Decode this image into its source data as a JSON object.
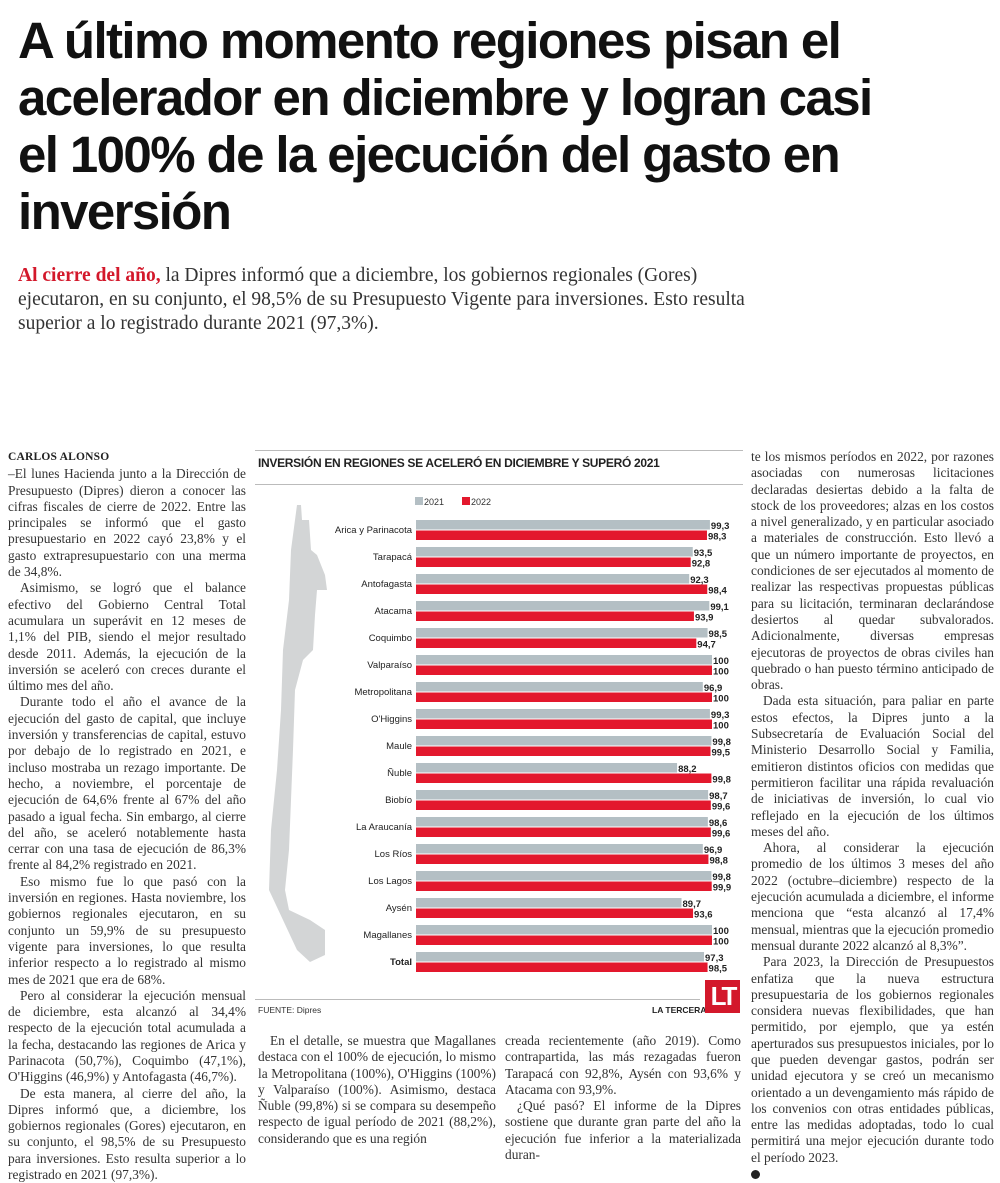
{
  "headline": "A último momento regiones pisan el acelerador en diciembre y logran casi el 100% de la ejecución del gasto en inversión",
  "lead": {
    "highlight": "Al cierre del año,",
    "text": " la Dipres informó que a diciembre, los gobiernos regionales (Gores) ejecutaron, en su conjunto, el 98,5% de su Presupuesto Vigente para inversiones. Esto resulta superior a lo registrado durante 2021 (97,3%)."
  },
  "byline": "CARLOS ALONSO",
  "col1": [
    "–El lunes Hacienda junto a la Dirección de Presupuesto (Dipres) dieron a conocer las cifras fiscales de cierre de 2022. Entre las principales se informó que el gasto presupuestario en 2022 cayó 23,8% y el gasto extrapresupuestario con una merma de 34,8%.",
    "Asimismo, se logró que el balance efectivo del Gobierno Central Total acumulara un superávit en 12 meses de 1,1% del PIB, siendo el mejor resultado desde 2011. Además, la ejecución de la inversión se aceleró con creces durante el último mes del año.",
    "Durante todo el año el avance de la ejecución del gasto de capital, que incluye inversión y transferencias de capital, estuvo por debajo de lo registrado en 2021, e incluso mostraba un rezago importante. De hecho, a noviembre, el porcentaje de ejecución de 64,6% frente al 67% del año pasado a igual fecha. Sin embargo, al cierre del año, se aceleró notablemente hasta cerrar con una tasa de ejecución de 86,3% frente al 84,2% registrado en 2021.",
    "Eso mismo fue lo que pasó con la inversión en regiones. Hasta noviembre, los gobiernos regionales ejecutaron, en su conjunto un 59,9% de su presupuesto vigente para inversiones, lo que resulta inferior respecto a lo registrado al mismo mes de 2021 que era de 68%.",
    "Pero al considerar la ejecución mensual de diciembre, esta alcanzó al 34,4% respecto de la ejecución total acumulada a la fecha, destacando las regiones de Arica y Parinacota (50,7%), Coquimbo (47,1%), O'Higgins (46,9%) y Antofagasta (46,7%).",
    "De esta manera, al cierre del año, la Dipres informó que, a diciembre, los gobiernos regionales (Gores) ejecutaron, en su conjunto, el 98,5% de su Presupuesto para inversiones. Esto resulta superior a lo registrado en 2021 (97,3%)."
  ],
  "col2": [
    "En el detalle, se muestra que Magallanes destaca con el 100% de ejecución, lo mismo la Metropolitana (100%), O'Higgins (100%) y Valparaíso (100%). Asimismo, destaca Ñuble (99,8%) si se compara su desempeño respecto de igual período de 2021 (88,2%), considerando que es una región"
  ],
  "col3": [
    "creada recientemente (año 2019). Como contrapartida, las más rezagadas fueron Tarapacá con 92,8%, Aysén con 93,6% y Atacama con 93,9%.",
    "¿Qué pasó? El informe de la Dipres sostiene que durante gran parte del año la ejecución fue inferior a la materializada duran-"
  ],
  "col4": [
    "te los mismos períodos en 2022, por razones asociadas con numerosas licitaciones declaradas desiertas debido a la falta de stock de los proveedores; alzas en los costos a nivel generalizado, y en particular asociado a materiales de construcción. Esto llevó a que un número importante de proyectos, en condiciones de ser ejecutados al momento de realizar las respectivas propuestas públicas para su licitación, terminaran declarándose desiertos al quedar subvalorados. Adicionalmente, diversas empresas ejecutoras de proyectos de obras civiles han quebrado o han puesto término anticipado de obras.",
    "Dada esta situación, para paliar en parte estos efectos, la Dipres junto a la Subsecretaría de Evaluación Social del Ministerio Desarrollo Social y Familia, emitieron distintos oficios con medidas que permitieron facilitar una rápida revaluación de iniciativas de inversión, lo cual vio reflejado en la ejecución de los últimos meses del año.",
    "Ahora, al considerar la ejecución promedio de los últimos 3 meses del año 2022 (octubre–diciembre) respecto de la ejecución acumulada a diciembre, el informe menciona que “esta alcanzó al 17,4% mensual, mientras que la ejecución promedio mensual durante 2022 alcanzó al 8,3%”.",
    "Para 2023, la Dirección de Presupuestos enfatiza que la nueva estructura presupuestaria de los gobiernos regionales considera nuevas flexibilidades, que han permitido, por ejemplo, que ya estén aperturados sus presupuestos iniciales, por lo que pueden devengar gastos, podrán ser unidad ejecutora y se creó un mecanismo orientado a un devengamiento más rápido de los convenios con otras entidades públicas, entre las medidas adoptadas, todo lo cual permitirá una mejor ejecución durante todo el período 2023."
  ],
  "chart_data": {
    "type": "bar",
    "orientation": "horizontal",
    "title": "INVERSIÓN EN REGIONES SE ACELERÓ EN DICIEMBRE Y SUPERÓ 2021",
    "source": "FUENTE: Dipres",
    "brand": "LA TERCERA",
    "logo": "LT",
    "categories": [
      "Arica y Parinacota",
      "Tarapacá",
      "Antofagasta",
      "Atacama",
      "Coquimbo",
      "Valparaíso",
      "Metropolitana",
      "O'Higgins",
      "Maule",
      "Ñuble",
      "Biobío",
      "La Araucanía",
      "Los Ríos",
      "Los Lagos",
      "Aysén",
      "Magallanes",
      "Total"
    ],
    "series": [
      {
        "name": "2021",
        "color": "#b4bfc4",
        "values": [
          99.3,
          93.5,
          92.3,
          99.1,
          98.5,
          100,
          96.9,
          99.3,
          99.8,
          88.2,
          98.7,
          98.6,
          96.9,
          99.8,
          89.7,
          100,
          97.3
        ]
      },
      {
        "name": "2022",
        "color": "#e3182d",
        "values": [
          98.3,
          92.8,
          98.4,
          93.9,
          94.7,
          100,
          100,
          100,
          99.5,
          99.8,
          99.6,
          99.6,
          98.8,
          99.9,
          93.6,
          100,
          98.5
        ]
      }
    ],
    "labels": {
      "2021": [
        "99,3",
        "93,5",
        "92,3",
        "99,1",
        "98,5",
        "100",
        "96,9",
        "99,3",
        "99,8",
        "88,2",
        "98,7",
        "98,6",
        "96,9",
        "99,8",
        "89,7",
        "100",
        "97,3"
      ],
      "2022": [
        "98,3",
        "92,8",
        "98,4",
        "93,9",
        "94,7",
        "100",
        "100",
        "100",
        "99,5",
        "99,8",
        "99,6",
        "99,6",
        "98,8",
        "99,9",
        "93,6",
        "100",
        "98,5"
      ]
    },
    "xlim": [
      0,
      100
    ],
    "grid": false,
    "legend": "top-left"
  }
}
